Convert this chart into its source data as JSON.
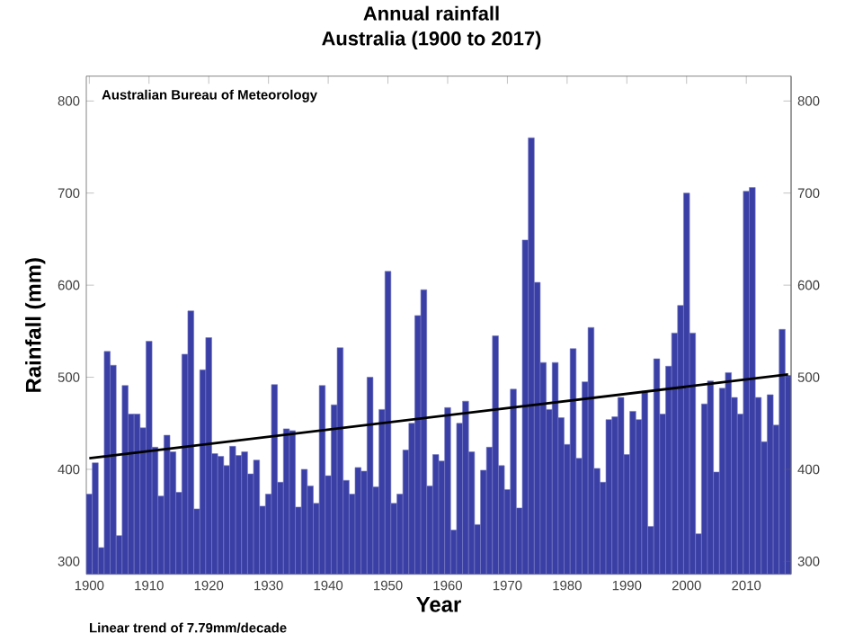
{
  "chart_data": {
    "type": "bar",
    "title": "Annual rainfall",
    "subtitle": "Australia (1900 to 2017)",
    "xlabel": "Year",
    "ylabel": "Rainfall (mm)",
    "annotations": [
      "Australian Bureau of Meteorology",
      "Linear trend of 7.79mm/decade"
    ],
    "x": [
      1900,
      1901,
      1902,
      1903,
      1904,
      1905,
      1906,
      1907,
      1908,
      1909,
      1910,
      1911,
      1912,
      1913,
      1914,
      1915,
      1916,
      1917,
      1918,
      1919,
      1920,
      1921,
      1922,
      1923,
      1924,
      1925,
      1926,
      1927,
      1928,
      1929,
      1930,
      1931,
      1932,
      1933,
      1934,
      1935,
      1936,
      1937,
      1938,
      1939,
      1940,
      1941,
      1942,
      1943,
      1944,
      1945,
      1946,
      1947,
      1948,
      1949,
      1950,
      1951,
      1952,
      1953,
      1954,
      1955,
      1956,
      1957,
      1958,
      1959,
      1960,
      1961,
      1962,
      1963,
      1964,
      1965,
      1966,
      1967,
      1968,
      1969,
      1970,
      1971,
      1972,
      1973,
      1974,
      1975,
      1976,
      1977,
      1978,
      1979,
      1980,
      1981,
      1982,
      1983,
      1984,
      1985,
      1986,
      1987,
      1988,
      1989,
      1990,
      1991,
      1992,
      1993,
      1994,
      1995,
      1996,
      1997,
      1998,
      1999,
      2000,
      2001,
      2002,
      2003,
      2004,
      2005,
      2006,
      2007,
      2008,
      2009,
      2010,
      2011,
      2012,
      2013,
      2014,
      2015,
      2016,
      2017
    ],
    "series": [
      {
        "color": "#3a3fa6",
        "values": [
          373,
          407,
          315,
          528,
          513,
          328,
          491,
          460,
          460,
          445,
          539,
          424,
          371,
          437,
          419,
          375,
          525,
          572,
          357,
          508,
          543,
          417,
          414,
          404,
          425,
          415,
          419,
          395,
          410,
          360,
          373,
          492,
          386,
          444,
          442,
          359,
          400,
          382,
          363,
          491,
          393,
          470,
          532,
          388,
          373,
          402,
          398,
          500,
          381,
          465,
          615,
          363,
          373,
          421,
          450,
          567,
          595,
          382,
          416,
          409,
          467,
          334,
          450,
          474,
          419,
          340,
          399,
          424,
          545,
          404,
          378,
          487,
          358,
          649,
          760,
          603,
          516,
          465,
          516,
          456,
          427,
          531,
          412,
          495,
          554,
          401,
          386,
          454,
          457,
          478,
          416,
          463,
          454,
          485,
          338,
          520,
          460,
          512,
          548,
          578,
          700,
          548,
          330,
          471,
          496,
          397,
          488,
          505,
          478,
          460,
          702,
          706,
          478,
          430,
          481,
          448,
          552,
          502
        ]
      },
      {
        "type": "line",
        "color": "#000000",
        "x": [
          1900,
          2017
        ],
        "values": [
          412,
          503
        ]
      }
    ],
    "xlim": [
      1899.5,
      2017.5
    ],
    "xticks": [
      1900,
      1910,
      1920,
      1930,
      1940,
      1950,
      1960,
      1970,
      1980,
      1990,
      2000,
      2010
    ],
    "ylim": [
      286,
      827
    ],
    "yticks": [
      300,
      400,
      500,
      600,
      700,
      800
    ],
    "y2lim": [
      286,
      827
    ],
    "y2ticks": [
      300,
      400,
      500,
      600,
      700,
      800
    ]
  }
}
